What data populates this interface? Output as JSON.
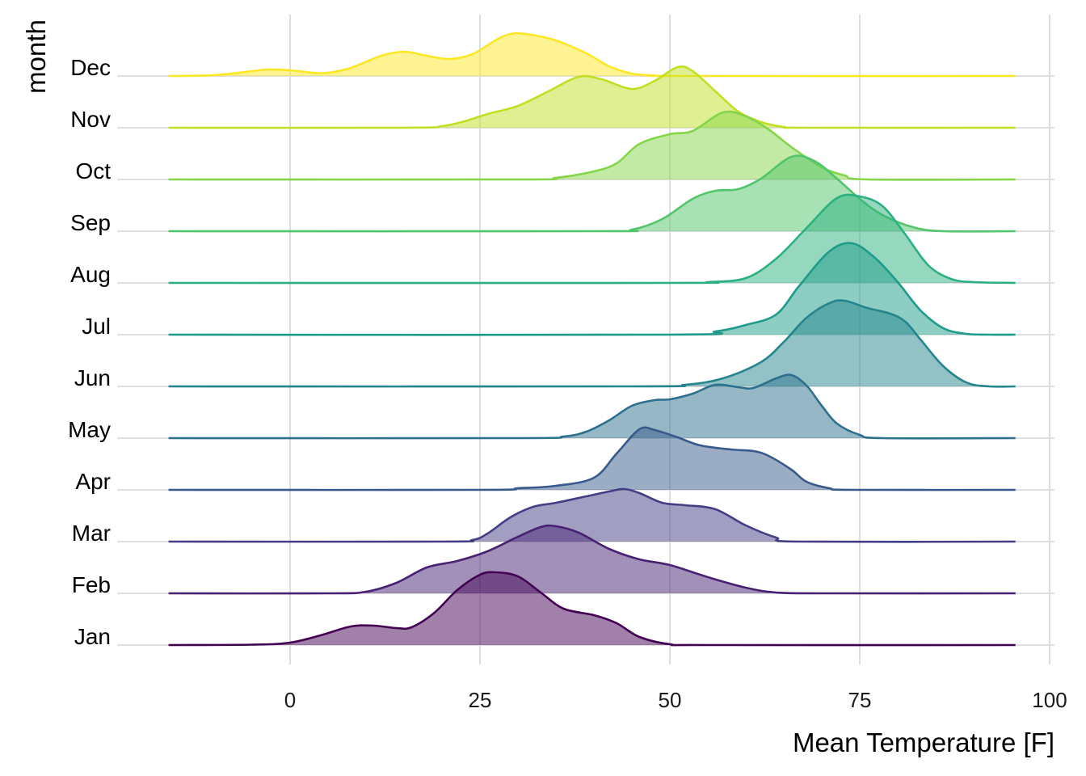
{
  "chart_data": {
    "type": "ridgeline",
    "title": "",
    "xlabel": "Mean Temperature [F]",
    "ylabel": "month",
    "xlim": [
      -16,
      95.5
    ],
    "x_ticks": [
      0,
      25,
      50,
      75,
      100
    ],
    "x_tick_labels": [
      "0",
      "25",
      "50",
      "75",
      "100"
    ],
    "grid": true,
    "fill_alpha": 0.5,
    "series": [
      {
        "name": "Jan",
        "color": "#440154",
        "density": [
          [
            -16,
            0
          ],
          [
            -5,
            0.5
          ],
          [
            0,
            3
          ],
          [
            4,
            12
          ],
          [
            8,
            23
          ],
          [
            11,
            24
          ],
          [
            14,
            21
          ],
          [
            16,
            22
          ],
          [
            19,
            40
          ],
          [
            22,
            68
          ],
          [
            25,
            87
          ],
          [
            27,
            90
          ],
          [
            30,
            85
          ],
          [
            33,
            65
          ],
          [
            36,
            45
          ],
          [
            40,
            37
          ],
          [
            43,
            27
          ],
          [
            46,
            10
          ],
          [
            50,
            1
          ],
          [
            55,
            0
          ],
          [
            95.5,
            0
          ]
        ]
      },
      {
        "name": "Feb",
        "color": "#482173",
        "density": [
          [
            -16,
            0
          ],
          [
            5,
            0
          ],
          [
            10,
            2
          ],
          [
            14,
            13
          ],
          [
            18,
            32
          ],
          [
            22,
            40
          ],
          [
            26,
            52
          ],
          [
            30,
            70
          ],
          [
            33,
            82
          ],
          [
            35,
            83
          ],
          [
            38,
            75
          ],
          [
            42,
            55
          ],
          [
            46,
            42
          ],
          [
            50,
            35
          ],
          [
            55,
            20
          ],
          [
            60,
            7
          ],
          [
            64,
            1
          ],
          [
            70,
            0
          ],
          [
            95.5,
            0
          ]
        ]
      },
      {
        "name": "Mar",
        "color": "#433e85",
        "density": [
          [
            -16,
            0
          ],
          [
            20,
            0
          ],
          [
            24,
            2
          ],
          [
            26,
            10
          ],
          [
            29,
            30
          ],
          [
            32,
            43
          ],
          [
            35,
            48
          ],
          [
            39,
            56
          ],
          [
            42,
            62
          ],
          [
            44,
            65
          ],
          [
            46,
            60
          ],
          [
            49,
            48
          ],
          [
            52,
            45
          ],
          [
            56,
            40
          ],
          [
            60,
            20
          ],
          [
            64,
            5
          ],
          [
            67,
            0
          ],
          [
            95.5,
            0
          ]
        ]
      },
      {
        "name": "Apr",
        "color": "#38598c",
        "density": [
          [
            -16,
            0
          ],
          [
            25,
            0
          ],
          [
            30,
            2
          ],
          [
            35,
            5
          ],
          [
            40,
            15
          ],
          [
            43,
            45
          ],
          [
            46,
            75
          ],
          [
            48,
            74
          ],
          [
            51,
            65
          ],
          [
            54,
            55
          ],
          [
            58,
            50
          ],
          [
            61,
            48
          ],
          [
            63,
            42
          ],
          [
            66,
            25
          ],
          [
            68,
            10
          ],
          [
            71,
            2
          ],
          [
            74,
            0
          ],
          [
            95.5,
            0
          ]
        ]
      },
      {
        "name": "May",
        "color": "#2d708e",
        "density": [
          [
            -16,
            0
          ],
          [
            30,
            0
          ],
          [
            36,
            2
          ],
          [
            39,
            8
          ],
          [
            42,
            22
          ],
          [
            45,
            40
          ],
          [
            48,
            47
          ],
          [
            50,
            48
          ],
          [
            53,
            55
          ],
          [
            56,
            66
          ],
          [
            59,
            63
          ],
          [
            61,
            62
          ],
          [
            64,
            74
          ],
          [
            66,
            78
          ],
          [
            68,
            65
          ],
          [
            70,
            40
          ],
          [
            72,
            18
          ],
          [
            75,
            4
          ],
          [
            78,
            0
          ],
          [
            95.5,
            0
          ]
        ]
      },
      {
        "name": "Jun",
        "color": "#25858e",
        "density": [
          [
            -16,
            0
          ],
          [
            45,
            0
          ],
          [
            52,
            2
          ],
          [
            57,
            10
          ],
          [
            62,
            30
          ],
          [
            65,
            55
          ],
          [
            68,
            85
          ],
          [
            71,
            103
          ],
          [
            73,
            106
          ],
          [
            76,
            97
          ],
          [
            79,
            90
          ],
          [
            81,
            80
          ],
          [
            83,
            58
          ],
          [
            86,
            25
          ],
          [
            89,
            5
          ],
          [
            92,
            0
          ],
          [
            95.5,
            0
          ]
        ]
      },
      {
        "name": "Jul",
        "color": "#1e9b8a",
        "density": [
          [
            -16,
            0
          ],
          [
            50,
            0
          ],
          [
            56,
            4
          ],
          [
            60,
            12
          ],
          [
            64,
            25
          ],
          [
            67,
            60
          ],
          [
            71,
            103
          ],
          [
            74,
            113
          ],
          [
            77,
            95
          ],
          [
            80,
            65
          ],
          [
            83,
            30
          ],
          [
            86,
            8
          ],
          [
            89,
            1
          ],
          [
            92,
            0
          ],
          [
            95.5,
            0
          ]
        ]
      },
      {
        "name": "Aug",
        "color": "#2bb07f",
        "density": [
          [
            -16,
            0
          ],
          [
            50,
            0
          ],
          [
            55,
            1
          ],
          [
            60,
            6
          ],
          [
            64,
            30
          ],
          [
            68,
            68
          ],
          [
            72,
            105
          ],
          [
            75,
            107
          ],
          [
            78,
            95
          ],
          [
            81,
            60
          ],
          [
            84,
            22
          ],
          [
            87,
            5
          ],
          [
            90,
            1
          ],
          [
            95.5,
            0
          ]
        ]
      },
      {
        "name": "Sep",
        "color": "#51c56a",
        "density": [
          [
            -16,
            0
          ],
          [
            40,
            0
          ],
          [
            45,
            2
          ],
          [
            49,
            15
          ],
          [
            53,
            40
          ],
          [
            56,
            50
          ],
          [
            59,
            52
          ],
          [
            62,
            65
          ],
          [
            66,
            92
          ],
          [
            69,
            87
          ],
          [
            72,
            65
          ],
          [
            75,
            40
          ],
          [
            78,
            20
          ],
          [
            82,
            5
          ],
          [
            86,
            0
          ],
          [
            95.5,
            0
          ]
        ]
      },
      {
        "name": "Oct",
        "color": "#85d54a",
        "density": [
          [
            -16,
            0
          ],
          [
            30,
            0
          ],
          [
            35,
            2
          ],
          [
            40,
            10
          ],
          [
            43,
            20
          ],
          [
            46,
            44
          ],
          [
            50,
            56
          ],
          [
            53,
            60
          ],
          [
            57,
            83
          ],
          [
            60,
            78
          ],
          [
            63,
            62
          ],
          [
            66,
            40
          ],
          [
            70,
            15
          ],
          [
            73,
            5
          ],
          [
            76,
            0
          ],
          [
            95.5,
            0
          ]
        ]
      },
      {
        "name": "Nov",
        "color": "#c2df23",
        "density": [
          [
            -16,
            0
          ],
          [
            15,
            0
          ],
          [
            20,
            2
          ],
          [
            23,
            8
          ],
          [
            26,
            17
          ],
          [
            30,
            27
          ],
          [
            34,
            45
          ],
          [
            38,
            63
          ],
          [
            41,
            60
          ],
          [
            45,
            48
          ],
          [
            48,
            58
          ],
          [
            51,
            75
          ],
          [
            53,
            70
          ],
          [
            56,
            45
          ],
          [
            59,
            20
          ],
          [
            62,
            7
          ],
          [
            65,
            1
          ],
          [
            68,
            0
          ],
          [
            95.5,
            0
          ]
        ]
      },
      {
        "name": "Dec",
        "color": "#fde725",
        "density": [
          [
            -16,
            0
          ],
          [
            -10,
            1
          ],
          [
            -5,
            6
          ],
          [
            -3,
            8
          ],
          [
            0,
            7
          ],
          [
            3,
            4
          ],
          [
            5,
            4
          ],
          [
            8,
            10
          ],
          [
            12,
            25
          ],
          [
            15,
            30
          ],
          [
            18,
            25
          ],
          [
            21,
            21
          ],
          [
            24,
            27
          ],
          [
            27,
            44
          ],
          [
            29,
            52
          ],
          [
            31,
            52
          ],
          [
            35,
            44
          ],
          [
            39,
            28
          ],
          [
            42,
            12
          ],
          [
            45,
            3
          ],
          [
            48,
            0.5
          ],
          [
            52,
            0
          ],
          [
            95.5,
            0
          ]
        ]
      }
    ]
  }
}
